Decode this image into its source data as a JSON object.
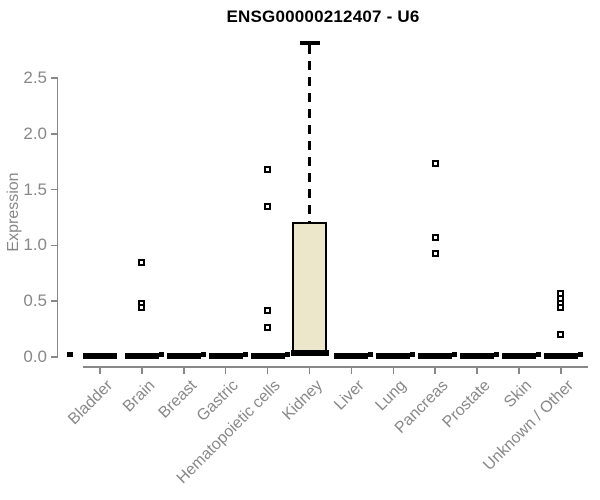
{
  "chart_data": {
    "type": "boxplot",
    "title": "ENSG00000212407 - U6",
    "ylabel": "Expression",
    "xlabel": "",
    "ylim": [
      0,
      2.85
    ],
    "yticks": [
      0,
      0.5,
      1,
      1.5,
      2,
      2.5
    ],
    "ytick_labels": [
      "0.0",
      "0.5",
      "1.0",
      "1.5",
      "2.0",
      "2.5"
    ],
    "grid": false,
    "legend": null,
    "categories": [
      "Bladder",
      "Brain",
      "Breast",
      "Gastric",
      "Hematopoietic cells",
      "Kidney",
      "Liver",
      "Lung",
      "Pancreas",
      "Prostate",
      "Skin",
      "Unknown / Other"
    ],
    "boxes": [
      {
        "category": "Bladder",
        "median": 0,
        "q1": 0,
        "q3": 0,
        "whisker_low": 0,
        "whisker_high": 0,
        "outliers": [],
        "zero_marker": "left"
      },
      {
        "category": "Brain",
        "median": 0,
        "q1": 0,
        "q3": 0,
        "whisker_low": 0,
        "whisker_high": 0,
        "outliers": [
          0.85,
          0.48,
          0.44
        ],
        "zero_marker": "right"
      },
      {
        "category": "Breast",
        "median": 0,
        "q1": 0,
        "q3": 0,
        "whisker_low": 0,
        "whisker_high": 0,
        "outliers": [],
        "zero_marker": "right"
      },
      {
        "category": "Gastric",
        "median": 0,
        "q1": 0,
        "q3": 0,
        "whisker_low": 0,
        "whisker_high": 0,
        "outliers": [],
        "zero_marker": "right"
      },
      {
        "category": "Hematopoietic cells",
        "median": 0,
        "q1": 0,
        "q3": 0,
        "whisker_low": 0,
        "whisker_high": 0,
        "outliers": [
          1.68,
          1.35,
          0.42,
          0.26
        ],
        "zero_marker": "right"
      },
      {
        "category": "Kidney",
        "median": 0.02,
        "q1": 0.02,
        "q3": 1.21,
        "whisker_low": 0,
        "whisker_high": 2.82,
        "outliers": [],
        "zero_marker": null
      },
      {
        "category": "Liver",
        "median": 0,
        "q1": 0,
        "q3": 0,
        "whisker_low": 0,
        "whisker_high": 0,
        "outliers": [],
        "zero_marker": "right"
      },
      {
        "category": "Lung",
        "median": 0,
        "q1": 0,
        "q3": 0,
        "whisker_low": 0,
        "whisker_high": 0,
        "outliers": [],
        "zero_marker": "right"
      },
      {
        "category": "Pancreas",
        "median": 0,
        "q1": 0,
        "q3": 0,
        "whisker_low": 0,
        "whisker_high": 0,
        "outliers": [
          1.73,
          1.07,
          0.93
        ],
        "zero_marker": "right"
      },
      {
        "category": "Prostate",
        "median": 0,
        "q1": 0,
        "q3": 0,
        "whisker_low": 0,
        "whisker_high": 0,
        "outliers": [],
        "zero_marker": "right"
      },
      {
        "category": "Skin",
        "median": 0,
        "q1": 0,
        "q3": 0,
        "whisker_low": 0,
        "whisker_high": 0,
        "outliers": [],
        "zero_marker": "right"
      },
      {
        "category": "Unknown / Other",
        "median": 0,
        "q1": 0,
        "q3": 0,
        "whisker_low": 0,
        "whisker_high": 0,
        "outliers": [
          0.57,
          0.52,
          0.48,
          0.44,
          0.2
        ],
        "zero_marker": "right"
      }
    ],
    "colors": {
      "box_fill": "#ece6cb",
      "box_border": "#000000",
      "axis": "#888888",
      "text": "#888888",
      "title_color": "#000000",
      "point": "#000000"
    }
  }
}
